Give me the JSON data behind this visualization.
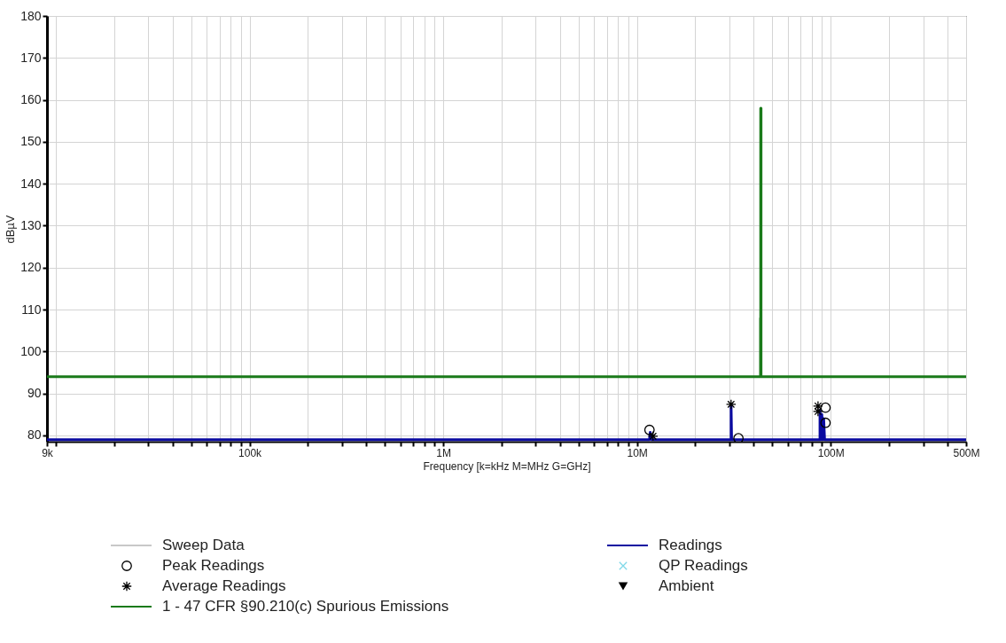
{
  "chart_data": {
    "type": "line",
    "xlabel": "Frequency [k=kHz M=MHz G=GHz]",
    "ylabel": "dBµV",
    "log": "x",
    "grid": true,
    "legend": "bottom",
    "xlim": [
      9000,
      500000000
    ],
    "ylim": [
      78.5,
      180
    ],
    "xticks": [
      {
        "value": 9000,
        "label": "9k"
      },
      {
        "value": 10000,
        "label": null
      },
      {
        "value": 20000,
        "label": null
      },
      {
        "value": 30000,
        "label": null
      },
      {
        "value": 40000,
        "label": null
      },
      {
        "value": 50000,
        "label": null
      },
      {
        "value": 60000,
        "label": null
      },
      {
        "value": 70000,
        "label": null
      },
      {
        "value": 80000,
        "label": null
      },
      {
        "value": 90000,
        "label": null
      },
      {
        "value": 100000,
        "label": "100k"
      },
      {
        "value": 200000,
        "label": null
      },
      {
        "value": 300000,
        "label": null
      },
      {
        "value": 400000,
        "label": null
      },
      {
        "value": 500000,
        "label": null
      },
      {
        "value": 600000,
        "label": null
      },
      {
        "value": 700000,
        "label": null
      },
      {
        "value": 800000,
        "label": null
      },
      {
        "value": 900000,
        "label": null
      },
      {
        "value": 1000000,
        "label": "1M"
      },
      {
        "value": 2000000,
        "label": null
      },
      {
        "value": 3000000,
        "label": null
      },
      {
        "value": 4000000,
        "label": null
      },
      {
        "value": 5000000,
        "label": null
      },
      {
        "value": 6000000,
        "label": null
      },
      {
        "value": 7000000,
        "label": null
      },
      {
        "value": 8000000,
        "label": null
      },
      {
        "value": 9000000,
        "label": null
      },
      {
        "value": 10000000,
        "label": "10M"
      },
      {
        "value": 20000000,
        "label": null
      },
      {
        "value": 30000000,
        "label": null
      },
      {
        "value": 40000000,
        "label": null
      },
      {
        "value": 50000000,
        "label": null
      },
      {
        "value": 60000000,
        "label": null
      },
      {
        "value": 70000000,
        "label": null
      },
      {
        "value": 80000000,
        "label": null
      },
      {
        "value": 90000000,
        "label": null
      },
      {
        "value": 100000000,
        "label": "100M"
      },
      {
        "value": 200000000,
        "label": null
      },
      {
        "value": 300000000,
        "label": null
      },
      {
        "value": 400000000,
        "label": null
      },
      {
        "value": 500000000,
        "label": "500M"
      }
    ],
    "yticks": [
      80,
      90,
      100,
      110,
      120,
      130,
      140,
      150,
      160,
      170,
      180
    ],
    "series": [
      {
        "name": "Sweep Data",
        "color": "#c8c8c8"
      },
      {
        "name": "Readings",
        "color": "#0a0aa0",
        "x": [
          9000,
          11600000,
          11700000,
          11900000,
          30600000,
          30600000,
          30800000,
          88000000,
          88000000,
          89000000,
          90000000,
          91000000,
          92000000,
          93000000,
          500000000
        ],
        "values": [
          79,
          79,
          80.7,
          79,
          79,
          87.4,
          79,
          79,
          86,
          79,
          85,
          79,
          84,
          79,
          79
        ]
      },
      {
        "name": "Peak Readings",
        "type": "scatter",
        "marker": "circle",
        "color": "#000000",
        "x": [
          11600000,
          33400000,
          94000000,
          94000000
        ],
        "values": [
          81.3,
          79.3,
          86.6,
          83
        ]
      },
      {
        "name": "QP Readings",
        "type": "scatter",
        "color": "#7fd8e8"
      },
      {
        "name": "Average Readings",
        "type": "scatter",
        "marker": "cross",
        "color": "#000000",
        "x": [
          12100000,
          30600000,
          86000000,
          86000000
        ],
        "values": [
          79.8,
          87.4,
          87,
          85.7
        ]
      },
      {
        "name": "Ambient",
        "type": "scatter",
        "marker": "triangle",
        "color": "#000000"
      },
      {
        "name": "1 - 47 CFR §90.210(c) Spurious Emissions",
        "color": "#1a7a1a",
        "x": [
          9000,
          43400000,
          43400000,
          43500000,
          43500000,
          43700000,
          43700000,
          500000000
        ],
        "values": [
          94,
          94,
          108,
          108,
          158,
          158,
          94,
          94
        ]
      }
    ]
  }
}
